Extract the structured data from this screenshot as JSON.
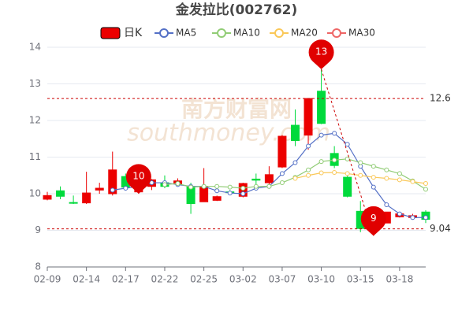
{
  "chart_data": {
    "type": "candlestick",
    "title": "金发拉比(002762)",
    "watermark": [
      "南方财富网",
      "southmoney.com"
    ],
    "categories": [
      "02-09",
      null,
      null,
      "02-14",
      null,
      null,
      "02-17",
      null,
      null,
      "02-22",
      null,
      null,
      "02-25",
      null,
      null,
      "03-02",
      null,
      null,
      "03-07",
      null,
      null,
      "03-10",
      null,
      null,
      "03-15",
      null,
      null,
      "03-18",
      null,
      null
    ],
    "ylim": [
      8,
      14
    ],
    "yticks": [
      8,
      9,
      10,
      11,
      12,
      13,
      14
    ],
    "grid": true,
    "up_color": "#ec0000",
    "down_color": "#00da3c",
    "candles": {
      "name": "日K",
      "open": [
        9.85,
        10.08,
        9.76,
        9.75,
        10.1,
        10.0,
        10.47,
        10.05,
        10.2,
        10.3,
        10.27,
        10.2,
        9.78,
        9.82,
        10.05,
        9.93,
        10.4,
        10.3,
        10.73,
        11.87,
        11.6,
        12.8,
        11.1,
        10.45,
        9.52,
        9.05,
        9.2,
        9.37,
        9.35,
        9.5
      ],
      "close": [
        9.95,
        9.93,
        9.74,
        10.02,
        10.15,
        10.65,
        10.18,
        10.22,
        10.38,
        10.2,
        10.35,
        9.73,
        10.2,
        9.92,
        10.03,
        10.28,
        10.37,
        10.52,
        11.57,
        11.45,
        12.6,
        11.92,
        10.77,
        9.93,
        9.05,
        9.4,
        9.5,
        9.45,
        9.4,
        9.3
      ],
      "high": [
        10.05,
        10.2,
        9.95,
        10.6,
        10.3,
        11.15,
        10.55,
        10.25,
        10.4,
        10.5,
        10.42,
        10.3,
        10.7,
        9.95,
        10.1,
        10.3,
        10.55,
        10.75,
        11.6,
        12.3,
        12.6,
        13.4,
        11.3,
        10.5,
        9.8,
        9.5,
        9.5,
        9.5,
        9.45,
        9.55
      ],
      "low": [
        9.82,
        9.85,
        9.72,
        9.72,
        10.0,
        9.95,
        10.1,
        10.0,
        10.1,
        10.15,
        10.2,
        9.45,
        9.78,
        9.8,
        9.98,
        9.9,
        10.15,
        10.25,
        10.7,
        11.3,
        11.2,
        11.9,
        10.7,
        9.9,
        8.95,
        8.85,
        9.2,
        9.35,
        9.3,
        9.2
      ]
    },
    "series": [
      {
        "name": "MA5",
        "color": "#5470c6",
        "values": [
          null,
          null,
          null,
          null,
          null,
          10.1,
          10.15,
          10.2,
          10.3,
          10.3,
          10.25,
          10.2,
          10.2,
          10.08,
          10.02,
          10.0,
          10.15,
          10.2,
          10.55,
          10.85,
          11.3,
          11.6,
          11.65,
          11.35,
          10.75,
          10.18,
          9.7,
          9.45,
          9.35,
          9.35
        ]
      },
      {
        "name": "MA10",
        "color": "#91cc75",
        "values": [
          null,
          null,
          null,
          null,
          null,
          null,
          null,
          null,
          null,
          10.25,
          10.28,
          10.18,
          10.2,
          10.2,
          10.18,
          10.15,
          10.2,
          10.2,
          10.3,
          10.45,
          10.65,
          10.88,
          10.92,
          10.95,
          10.85,
          10.75,
          10.65,
          10.55,
          10.35,
          10.12
        ]
      },
      {
        "name": "MA20",
        "color": "#fac858",
        "values": [
          null,
          null,
          null,
          null,
          null,
          null,
          null,
          null,
          null,
          null,
          null,
          null,
          null,
          null,
          null,
          null,
          null,
          null,
          null,
          10.42,
          10.5,
          10.57,
          10.58,
          10.55,
          10.5,
          10.45,
          10.42,
          10.38,
          10.33,
          10.28
        ]
      },
      {
        "name": "MA30",
        "color": "#ee6666",
        "values": [
          null,
          null,
          null,
          null,
          null,
          null,
          null,
          null,
          null,
          null,
          null,
          null,
          null,
          null,
          null,
          null,
          null,
          null,
          null,
          null,
          null,
          null,
          null,
          null,
          null,
          null,
          null,
          null,
          null,
          null
        ]
      }
    ],
    "mark_lines": [
      12.6,
      9.04
    ],
    "mark_points": [
      {
        "label": "13",
        "index": 21,
        "value": 13.4
      },
      {
        "label": "10",
        "index": 7,
        "value": 10.0
      },
      {
        "label": "9",
        "index": 25,
        "value": 8.85
      }
    ]
  }
}
